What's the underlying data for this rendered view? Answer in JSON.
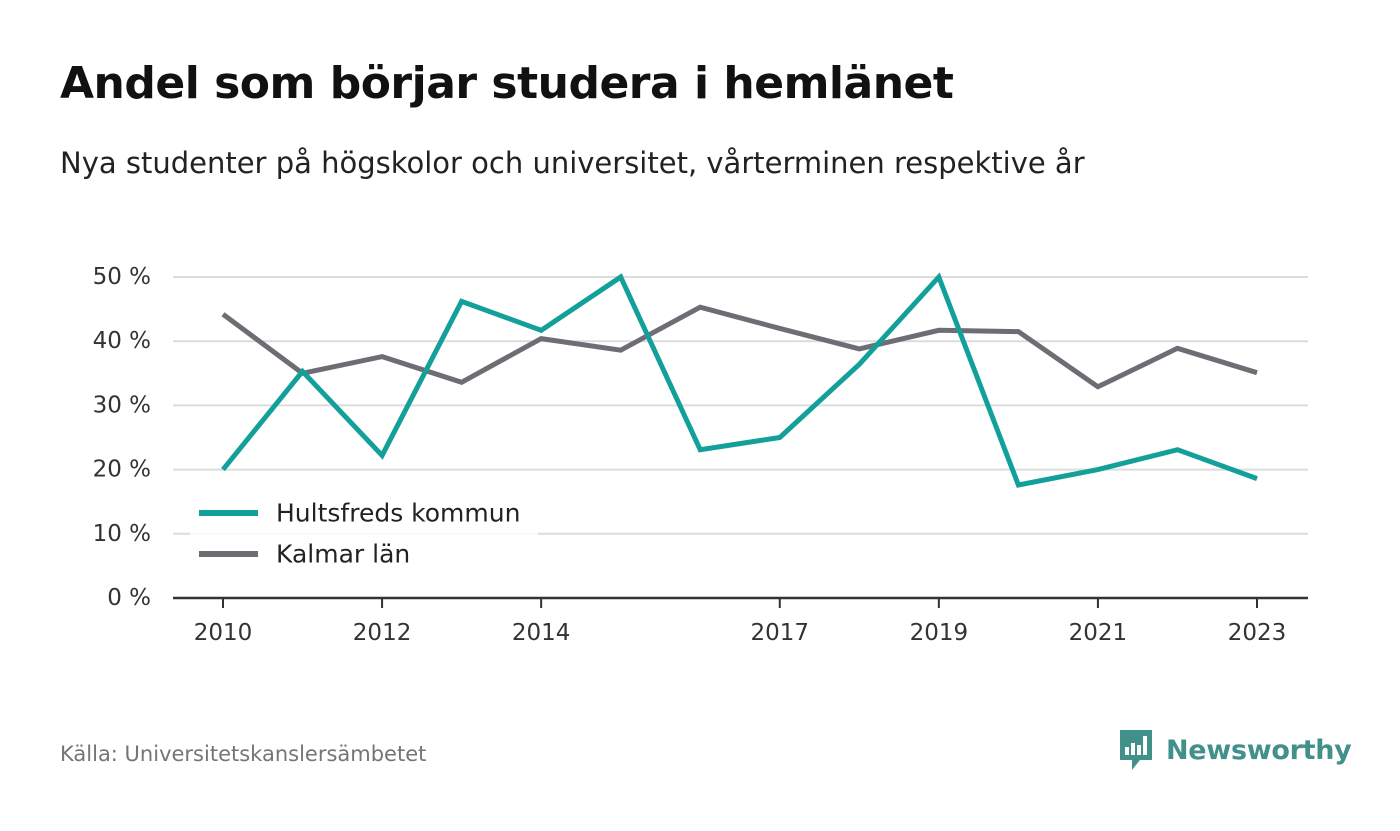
{
  "header": {
    "title": "Andel som börjar studera i hemlänet",
    "subtitle": "Nya studenter på högskolor och universitet, vårterminen respektive år"
  },
  "footer": {
    "source": "Källa: Universitetskanslersämbetet",
    "brand": "Newsworthy",
    "brand_icon": "newsworthy-logo-icon",
    "brand_color": "#42908a"
  },
  "chart_data": {
    "type": "line",
    "title": "Andel som börjar studera i hemlänet",
    "subtitle": "Nya studenter på högskolor och universitet, vårterminen respektive år",
    "xlabel": "",
    "ylabel": "",
    "x": [
      2010,
      2011,
      2012,
      2013,
      2014,
      2015,
      2016,
      2017,
      2018,
      2019,
      2020,
      2021,
      2022,
      2023
    ],
    "x_tick_values": [
      2010,
      2012,
      2014,
      2017,
      2019,
      2021,
      2023
    ],
    "x_tick_labels": [
      "2010",
      "2012",
      "2014",
      "2017",
      "2019",
      "2021",
      "2023"
    ],
    "ylim": [
      0,
      50
    ],
    "y_tick_values": [
      0,
      10,
      20,
      30,
      40,
      50
    ],
    "y_tick_labels": [
      "0 %",
      "10 %",
      "20 %",
      "30 %",
      "40 %",
      "50 %"
    ],
    "grid": true,
    "legend_position": "bottom-left",
    "series": [
      {
        "name": "Hultsfreds kommun",
        "color": "#14a09a",
        "values": [
          20,
          35.3,
          22.2,
          46.2,
          41.7,
          50,
          23.1,
          25,
          36.4,
          50,
          17.6,
          20,
          23.1,
          18.6
        ]
      },
      {
        "name": "Kalmar län",
        "color": "#6e6d74",
        "values": [
          44.2,
          35,
          37.6,
          33.6,
          40.4,
          38.6,
          45.3,
          42,
          38.8,
          41.7,
          41.5,
          32.9,
          38.9,
          35.1
        ]
      }
    ]
  }
}
